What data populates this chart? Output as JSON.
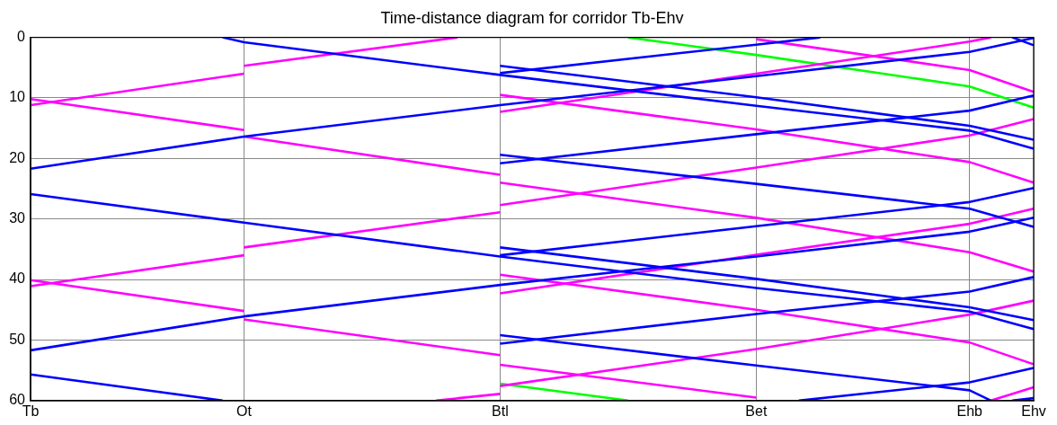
{
  "chart_data": {
    "type": "line",
    "title": "Time-distance diagram for corridor Tb-Ehv",
    "categories": [
      "Tb",
      null,
      null,
      null,
      null,
      null,
      null,
      null,
      null,
      null,
      "Ot",
      null,
      null,
      null,
      null,
      null,
      null,
      null,
      null,
      null,
      null,
      null,
      "Btl",
      null,
      null,
      null,
      null,
      null,
      null,
      null,
      null,
      null,
      null,
      null,
      "Bet",
      null,
      null,
      null,
      null,
      null,
      null,
      null,
      null,
      null,
      "Ehb",
      null,
      null,
      "Ehv"
    ],
    "ylim": [
      60,
      0
    ],
    "yticks": [
      0,
      10,
      20,
      30,
      40,
      50,
      60
    ],
    "grid": true,
    "legend": false,
    "marker": "none",
    "line_style": "solid",
    "series": [
      {
        "color": "#0000ff",
        "values": [
          null,
          null,
          null,
          null,
          null,
          null,
          null,
          null,
          null,
          0,
          0.8,
          null,
          null,
          null,
          null,
          null,
          null,
          null,
          null,
          null,
          null,
          null,
          6.2,
          null,
          null,
          null,
          null,
          null,
          null,
          null,
          null,
          null,
          null,
          null,
          11.3,
          null,
          null,
          null,
          null,
          null,
          null,
          null,
          null,
          null,
          15.4,
          null,
          null,
          18.4
        ]
      },
      {
        "color": "#0000ff",
        "values": [
          25.9,
          null,
          null,
          null,
          null,
          null,
          null,
          null,
          null,
          null,
          30.6,
          null,
          null,
          null,
          null,
          null,
          null,
          null,
          null,
          null,
          null,
          null,
          36.2,
          null,
          null,
          null,
          null,
          null,
          null,
          null,
          null,
          null,
          null,
          null,
          41.4,
          null,
          null,
          null,
          null,
          null,
          null,
          null,
          null,
          null,
          45.3,
          null,
          null,
          48.2
        ]
      },
      {
        "color": "#0000ff",
        "values": [
          55.7,
          null,
          null,
          null,
          null,
          null,
          null,
          null,
          null,
          60,
          null,
          null,
          null,
          null,
          null,
          null,
          null,
          null,
          null,
          null,
          null,
          null,
          null,
          null,
          null,
          null,
          null,
          null,
          null,
          null,
          null,
          null,
          null,
          null,
          null,
          null,
          null,
          null,
          null,
          null,
          null,
          null,
          null,
          null,
          null,
          null,
          null,
          null
        ]
      },
      {
        "color": "#0000ff",
        "values": [
          21.7,
          null,
          null,
          null,
          null,
          null,
          null,
          null,
          null,
          null,
          16.4,
          null,
          null,
          null,
          null,
          null,
          null,
          null,
          null,
          null,
          null,
          null,
          11.2,
          null,
          null,
          null,
          null,
          null,
          null,
          null,
          null,
          null,
          null,
          null,
          6.4,
          null,
          null,
          null,
          null,
          null,
          null,
          null,
          null,
          null,
          2.4,
          null,
          null,
          0.1
        ]
      },
      {
        "color": "#0000ff",
        "values": [
          51.7,
          null,
          null,
          null,
          null,
          null,
          null,
          null,
          null,
          null,
          46.1,
          null,
          null,
          null,
          null,
          null,
          null,
          null,
          null,
          null,
          null,
          null,
          40.9,
          null,
          null,
          null,
          null,
          null,
          null,
          null,
          null,
          null,
          null,
          null,
          36.2,
          null,
          null,
          null,
          null,
          null,
          null,
          null,
          null,
          null,
          32.1,
          null,
          null,
          29.8
        ]
      },
      {
        "color": "#0000ff",
        "values": [
          null,
          null,
          null,
          null,
          null,
          null,
          null,
          null,
          null,
          null,
          null,
          null,
          null,
          null,
          null,
          null,
          null,
          null,
          null,
          null,
          null,
          null,
          5.9,
          null,
          null,
          null,
          null,
          null,
          null,
          null,
          null,
          null,
          null,
          null,
          1.2,
          null,
          null,
          0,
          null,
          null,
          null,
          null,
          null,
          null,
          null,
          null,
          null,
          null
        ]
      },
      {
        "color": "#0000ff",
        "values": [
          null,
          null,
          null,
          null,
          null,
          null,
          null,
          null,
          null,
          null,
          null,
          null,
          null,
          null,
          null,
          null,
          null,
          null,
          null,
          null,
          null,
          null,
          36.0,
          null,
          null,
          null,
          null,
          null,
          null,
          null,
          null,
          null,
          null,
          null,
          31.2,
          null,
          null,
          null,
          null,
          null,
          null,
          null,
          null,
          null,
          27.2,
          null,
          null,
          24.9
        ]
      },
      {
        "color": "#0000ff",
        "values": [
          null,
          null,
          null,
          null,
          null,
          null,
          null,
          null,
          null,
          null,
          null,
          null,
          null,
          null,
          null,
          null,
          null,
          null,
          null,
          null,
          null,
          null,
          20.8,
          null,
          null,
          null,
          null,
          null,
          null,
          null,
          null,
          null,
          null,
          null,
          16.0,
          null,
          null,
          null,
          null,
          null,
          null,
          null,
          null,
          null,
          12.1,
          null,
          null,
          9.6
        ]
      },
      {
        "color": "#0000ff",
        "values": [
          null,
          null,
          null,
          null,
          null,
          null,
          null,
          null,
          null,
          null,
          null,
          null,
          null,
          null,
          null,
          null,
          null,
          null,
          null,
          null,
          null,
          null,
          50.6,
          null,
          null,
          null,
          null,
          null,
          null,
          null,
          null,
          null,
          null,
          null,
          45.7,
          null,
          null,
          null,
          null,
          null,
          null,
          null,
          null,
          null,
          42.0,
          null,
          null,
          39.6
        ]
      },
      {
        "color": "#0000ff",
        "values": [
          null,
          null,
          null,
          null,
          null,
          null,
          null,
          null,
          null,
          null,
          null,
          null,
          null,
          null,
          null,
          null,
          null,
          null,
          null,
          null,
          null,
          null,
          null,
          null,
          null,
          null,
          null,
          null,
          null,
          null,
          null,
          null,
          null,
          null,
          null,
          null,
          60,
          null,
          null,
          null,
          null,
          null,
          null,
          null,
          57.0,
          null,
          null,
          54.6
        ]
      },
      {
        "color": "#0000ff",
        "values": [
          null,
          null,
          null,
          null,
          null,
          null,
          null,
          null,
          null,
          null,
          null,
          null,
          null,
          null,
          null,
          null,
          null,
          null,
          null,
          null,
          null,
          null,
          null,
          null,
          null,
          null,
          null,
          null,
          null,
          null,
          null,
          null,
          null,
          null,
          null,
          null,
          null,
          null,
          null,
          null,
          null,
          null,
          null,
          null,
          null,
          null,
          60,
          59.6
        ]
      },
      {
        "color": "#0000ff",
        "values": [
          null,
          null,
          null,
          null,
          null,
          null,
          null,
          null,
          null,
          null,
          null,
          null,
          null,
          null,
          null,
          null,
          null,
          null,
          null,
          null,
          null,
          null,
          4.7,
          null,
          null,
          null,
          null,
          null,
          null,
          null,
          null,
          null,
          null,
          null,
          9.9,
          null,
          null,
          null,
          null,
          null,
          null,
          null,
          null,
          null,
          14.6,
          null,
          null,
          16.9
        ]
      },
      {
        "color": "#0000ff",
        "values": [
          null,
          null,
          null,
          null,
          null,
          null,
          null,
          null,
          null,
          null,
          null,
          null,
          null,
          null,
          null,
          null,
          null,
          null,
          null,
          null,
          null,
          null,
          34.7,
          null,
          null,
          null,
          null,
          null,
          null,
          null,
          null,
          null,
          null,
          null,
          39.9,
          null,
          null,
          null,
          null,
          null,
          null,
          null,
          null,
          null,
          44.6,
          null,
          null,
          46.7
        ]
      },
      {
        "color": "#0000ff",
        "values": [
          null,
          null,
          null,
          null,
          null,
          null,
          null,
          null,
          null,
          null,
          null,
          null,
          null,
          null,
          null,
          null,
          null,
          null,
          null,
          null,
          null,
          null,
          19.4,
          null,
          null,
          null,
          null,
          null,
          null,
          null,
          null,
          null,
          null,
          null,
          24.2,
          null,
          null,
          null,
          null,
          null,
          null,
          null,
          null,
          null,
          28.3,
          null,
          null,
          31.3
        ]
      },
      {
        "color": "#0000ff",
        "values": [
          null,
          null,
          null,
          null,
          null,
          null,
          null,
          null,
          null,
          null,
          null,
          null,
          null,
          null,
          null,
          null,
          null,
          null,
          null,
          null,
          null,
          null,
          49.2,
          null,
          null,
          null,
          null,
          null,
          null,
          null,
          null,
          null,
          null,
          null,
          54.2,
          null,
          null,
          null,
          null,
          null,
          null,
          null,
          null,
          null,
          58.3,
          60,
          null,
          null
        ]
      },
      {
        "color": "#0000ff",
        "values": [
          null,
          null,
          null,
          null,
          null,
          null,
          null,
          null,
          null,
          null,
          null,
          null,
          null,
          null,
          null,
          null,
          null,
          null,
          null,
          null,
          null,
          null,
          null,
          null,
          null,
          null,
          null,
          null,
          null,
          null,
          null,
          null,
          null,
          null,
          null,
          null,
          null,
          null,
          null,
          null,
          null,
          null,
          null,
          null,
          null,
          null,
          0,
          1.3
        ]
      },
      {
        "color": "#ff00ff",
        "values": [
          11.2,
          null,
          null,
          null,
          null,
          null,
          null,
          null,
          null,
          null,
          6.0,
          null,
          null,
          null,
          null,
          null,
          null,
          null,
          null,
          null,
          null,
          null,
          null,
          null,
          null,
          null,
          null,
          null,
          null,
          null,
          null,
          null,
          null,
          null,
          null,
          null,
          null,
          null,
          null,
          null,
          null,
          null,
          null,
          null,
          null,
          null,
          null,
          null
        ]
      },
      {
        "color": "#ff00ff",
        "values": [
          null,
          null,
          null,
          null,
          null,
          null,
          null,
          null,
          null,
          null,
          4.7,
          null,
          null,
          null,
          null,
          null,
          null,
          null,
          null,
          null,
          0,
          null,
          null,
          null,
          null,
          null,
          null,
          null,
          null,
          null,
          null,
          null,
          null,
          null,
          null,
          null,
          null,
          null,
          null,
          null,
          null,
          null,
          null,
          null,
          null,
          null,
          null,
          null
        ]
      },
      {
        "color": "#ff00ff",
        "values": [
          10.2,
          null,
          null,
          null,
          null,
          null,
          null,
          null,
          null,
          null,
          15.3,
          null,
          null,
          null,
          null,
          null,
          null,
          null,
          null,
          null,
          null,
          null,
          null,
          null,
          null,
          null,
          null,
          null,
          null,
          null,
          null,
          null,
          null,
          null,
          null,
          null,
          null,
          null,
          null,
          null,
          null,
          null,
          null,
          null,
          null,
          null,
          null,
          null
        ]
      },
      {
        "color": "#ff00ff",
        "values": [
          null,
          null,
          null,
          null,
          null,
          null,
          null,
          null,
          null,
          null,
          16.4,
          null,
          null,
          null,
          null,
          null,
          null,
          null,
          null,
          null,
          null,
          null,
          22.7,
          null,
          null,
          null,
          null,
          null,
          null,
          null,
          null,
          null,
          null,
          null,
          null,
          null,
          null,
          null,
          null,
          null,
          null,
          null,
          null,
          null,
          null,
          null,
          null,
          null
        ]
      },
      {
        "color": "#ff00ff",
        "values": [
          null,
          null,
          null,
          null,
          null,
          null,
          null,
          null,
          null,
          null,
          null,
          null,
          null,
          null,
          null,
          null,
          null,
          null,
          null,
          null,
          null,
          null,
          24.0,
          null,
          null,
          null,
          null,
          null,
          null,
          null,
          null,
          null,
          null,
          null,
          29.8,
          null,
          null,
          null,
          null,
          null,
          null,
          null,
          null,
          null,
          35.5,
          null,
          null,
          38.7
        ]
      },
      {
        "color": "#ff00ff",
        "values": [
          41.1,
          null,
          null,
          null,
          null,
          null,
          null,
          null,
          null,
          null,
          36.0,
          null,
          null,
          null,
          null,
          null,
          null,
          null,
          null,
          null,
          null,
          null,
          null,
          null,
          null,
          null,
          null,
          null,
          null,
          null,
          null,
          null,
          null,
          null,
          null,
          null,
          null,
          null,
          null,
          null,
          null,
          null,
          null,
          null,
          null,
          null,
          null,
          null
        ]
      },
      {
        "color": "#ff00ff",
        "values": [
          null,
          null,
          null,
          null,
          null,
          null,
          null,
          null,
          null,
          null,
          34.7,
          null,
          null,
          null,
          null,
          null,
          null,
          null,
          null,
          null,
          null,
          null,
          28.9,
          null,
          null,
          null,
          null,
          null,
          null,
          null,
          null,
          null,
          null,
          null,
          null,
          null,
          null,
          null,
          null,
          null,
          null,
          null,
          null,
          null,
          null,
          null,
          null,
          null
        ]
      },
      {
        "color": "#ff00ff",
        "values": [
          null,
          null,
          null,
          null,
          null,
          null,
          null,
          null,
          null,
          null,
          null,
          null,
          null,
          null,
          null,
          null,
          null,
          null,
          null,
          null,
          null,
          null,
          27.7,
          null,
          null,
          null,
          null,
          null,
          null,
          null,
          null,
          null,
          null,
          null,
          21.5,
          null,
          null,
          null,
          null,
          null,
          null,
          null,
          null,
          null,
          16.2,
          null,
          null,
          13.5
        ]
      },
      {
        "color": "#ff00ff",
        "values": [
          40.1,
          null,
          null,
          null,
          null,
          null,
          null,
          null,
          null,
          null,
          45.2,
          null,
          null,
          null,
          null,
          null,
          null,
          null,
          null,
          null,
          null,
          null,
          null,
          null,
          null,
          null,
          null,
          null,
          null,
          null,
          null,
          null,
          null,
          null,
          null,
          null,
          null,
          null,
          null,
          null,
          null,
          null,
          null,
          null,
          null,
          null,
          null,
          null
        ]
      },
      {
        "color": "#ff00ff",
        "values": [
          null,
          null,
          null,
          null,
          null,
          null,
          null,
          null,
          null,
          null,
          46.6,
          null,
          null,
          null,
          null,
          null,
          null,
          null,
          null,
          null,
          null,
          null,
          52.5,
          null,
          null,
          null,
          null,
          null,
          null,
          null,
          null,
          null,
          null,
          null,
          null,
          null,
          null,
          null,
          null,
          null,
          null,
          null,
          null,
          null,
          null,
          null,
          null,
          null
        ]
      },
      {
        "color": "#ff00ff",
        "values": [
          null,
          null,
          null,
          null,
          null,
          null,
          null,
          null,
          null,
          null,
          null,
          null,
          null,
          null,
          null,
          null,
          null,
          null,
          null,
          null,
          null,
          null,
          54.1,
          null,
          null,
          null,
          null,
          null,
          null,
          null,
          null,
          null,
          null,
          null,
          59.5,
          null,
          null,
          null,
          null,
          null,
          null,
          null,
          null,
          null,
          null,
          null,
          null,
          null
        ]
      },
      {
        "color": "#ff00ff",
        "values": [
          null,
          null,
          null,
          null,
          null,
          null,
          null,
          null,
          null,
          null,
          null,
          null,
          null,
          null,
          null,
          null,
          null,
          null,
          null,
          60,
          null,
          null,
          58.9,
          null,
          null,
          null,
          null,
          null,
          null,
          null,
          null,
          null,
          null,
          null,
          null,
          null,
          null,
          null,
          null,
          null,
          null,
          null,
          null,
          null,
          null,
          null,
          null,
          null
        ]
      },
      {
        "color": "#ff00ff",
        "values": [
          null,
          null,
          null,
          null,
          null,
          null,
          null,
          null,
          null,
          null,
          null,
          null,
          null,
          null,
          null,
          null,
          null,
          null,
          null,
          null,
          null,
          null,
          57.6,
          null,
          null,
          null,
          null,
          null,
          null,
          null,
          null,
          null,
          null,
          null,
          51.5,
          null,
          null,
          null,
          null,
          null,
          null,
          null,
          null,
          null,
          45.8,
          null,
          null,
          43.5
        ]
      },
      {
        "color": "#ff00ff",
        "values": [
          null,
          null,
          null,
          null,
          null,
          null,
          null,
          null,
          null,
          null,
          null,
          null,
          null,
          null,
          null,
          null,
          null,
          null,
          null,
          null,
          null,
          null,
          12.3,
          null,
          null,
          null,
          null,
          null,
          null,
          null,
          null,
          null,
          null,
          null,
          6.0,
          null,
          null,
          null,
          null,
          null,
          null,
          null,
          null,
          null,
          0.7,
          0,
          null,
          null
        ]
      },
      {
        "color": "#ff00ff",
        "values": [
          null,
          null,
          null,
          null,
          null,
          null,
          null,
          null,
          null,
          null,
          null,
          null,
          null,
          null,
          null,
          null,
          null,
          null,
          null,
          null,
          null,
          null,
          42.3,
          null,
          null,
          null,
          null,
          null,
          null,
          null,
          null,
          null,
          null,
          null,
          35.9,
          null,
          null,
          null,
          null,
          null,
          null,
          null,
          null,
          null,
          30.8,
          null,
          null,
          28.3
        ]
      },
      {
        "color": "#ff00ff",
        "values": [
          null,
          null,
          null,
          null,
          null,
          null,
          null,
          null,
          null,
          null,
          null,
          null,
          null,
          null,
          null,
          null,
          null,
          null,
          null,
          null,
          null,
          null,
          9.5,
          null,
          null,
          null,
          null,
          null,
          null,
          null,
          null,
          null,
          null,
          null,
          15.2,
          null,
          null,
          null,
          null,
          null,
          null,
          null,
          null,
          null,
          20.6,
          null,
          null,
          24.0
        ]
      },
      {
        "color": "#ff00ff",
        "values": [
          null,
          null,
          null,
          null,
          null,
          null,
          null,
          null,
          null,
          null,
          null,
          null,
          null,
          null,
          null,
          null,
          null,
          null,
          null,
          null,
          null,
          null,
          39.2,
          null,
          null,
          null,
          null,
          null,
          null,
          null,
          null,
          null,
          null,
          null,
          45.0,
          null,
          null,
          null,
          null,
          null,
          null,
          null,
          null,
          null,
          50.4,
          null,
          null,
          54.0
        ]
      },
      {
        "color": "#ff00ff",
        "values": [
          null,
          null,
          null,
          null,
          null,
          null,
          null,
          null,
          null,
          null,
          null,
          null,
          null,
          null,
          null,
          null,
          null,
          null,
          null,
          null,
          null,
          null,
          null,
          null,
          null,
          null,
          null,
          null,
          null,
          null,
          null,
          null,
          null,
          null,
          0.3,
          null,
          null,
          null,
          null,
          null,
          null,
          null,
          null,
          null,
          5.4,
          null,
          null,
          9.0
        ]
      },
      {
        "color": "#ff00ff",
        "values": [
          null,
          null,
          null,
          null,
          null,
          null,
          null,
          null,
          null,
          null,
          null,
          null,
          null,
          null,
          null,
          null,
          null,
          null,
          null,
          null,
          null,
          null,
          null,
          null,
          null,
          null,
          null,
          null,
          null,
          null,
          null,
          null,
          null,
          null,
          null,
          null,
          null,
          null,
          null,
          null,
          null,
          null,
          null,
          null,
          null,
          60,
          null,
          57.8
        ]
      },
      {
        "color": "#00ff00",
        "values": [
          null,
          null,
          null,
          null,
          null,
          null,
          null,
          null,
          null,
          null,
          null,
          null,
          null,
          null,
          null,
          null,
          null,
          null,
          null,
          null,
          null,
          null,
          null,
          null,
          null,
          null,
          null,
          null,
          0,
          null,
          null,
          null,
          null,
          null,
          2.9,
          null,
          null,
          null,
          null,
          null,
          null,
          null,
          null,
          null,
          8.1,
          null,
          null,
          11.6
        ]
      },
      {
        "color": "#00ff00",
        "values": [
          null,
          null,
          null,
          null,
          null,
          null,
          null,
          null,
          null,
          null,
          null,
          null,
          null,
          null,
          null,
          null,
          null,
          null,
          null,
          null,
          null,
          null,
          57.2,
          null,
          null,
          null,
          null,
          null,
          60,
          null,
          null,
          null,
          null,
          null,
          null,
          null,
          null,
          null,
          null,
          null,
          null,
          null,
          null,
          null,
          null,
          null,
          null,
          null
        ]
      }
    ]
  }
}
